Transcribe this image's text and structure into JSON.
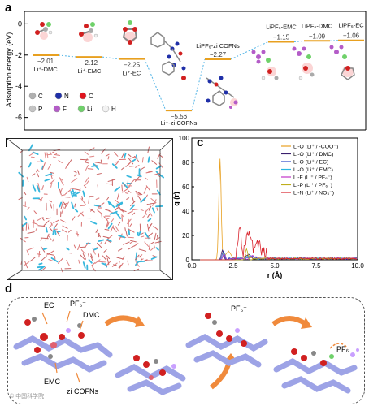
{
  "panel_a": {
    "label": "a",
    "ylabel": "Adsorption energy (eV)",
    "yticks": [
      "0",
      "-2",
      "-4",
      "-6"
    ],
    "legend": [
      {
        "symbol": "C",
        "color": "#b0b0b0"
      },
      {
        "symbol": "N",
        "color": "#1f2fa8"
      },
      {
        "symbol": "O",
        "color": "#e0141e"
      },
      {
        "symbol": "P",
        "color": "#c4c4c4"
      },
      {
        "symbol": "F",
        "color": "#b45cc8"
      },
      {
        "symbol": "Li",
        "color": "#6fd16a"
      },
      {
        "symbol": "H",
        "color": "#f2f2f2"
      }
    ]
  },
  "panel_b": {
    "label": "b"
  },
  "panel_c": {
    "label": "c"
  },
  "panel_d": {
    "label": "d",
    "annotations": {
      "ec": "EC",
      "pf6_1": "PF₆⁻",
      "dmc": "DMC",
      "emc": "EMC",
      "zicofns": "zi COFNs",
      "pf6_2": "PF₆⁻",
      "pf6_3": "PF₆⁻"
    },
    "watermark": "© 中国科学院"
  },
  "chart_data": [
    {
      "type": "line",
      "title": "",
      "xlabel": "",
      "ylabel": "Adsorption energy (eV)",
      "ylim": [
        -6.8,
        0.8
      ],
      "points": [
        {
          "label": "Li⁺-DMC",
          "value": -2.01,
          "color": "#e8a020"
        },
        {
          "label": "Li⁺-EMC",
          "value": -2.12,
          "color": "#e8a020"
        },
        {
          "label": "Li⁺-EC",
          "value": -2.25,
          "color": "#e8a020"
        },
        {
          "label": "Li⁺-zi COFNs",
          "value": -5.56,
          "color": "#e8a020"
        },
        {
          "label": "LiPF₆-zi COFNs",
          "value": -2.27,
          "color": "#e8a020"
        },
        {
          "label": "LiPF₆-EMC",
          "value": -1.15,
          "color": "#e8a020"
        },
        {
          "label": "LiPF₆-DMC",
          "value": -1.09,
          "color": "#e8a020"
        },
        {
          "label": "LiPF₆-EC",
          "value": -1.06,
          "color": "#e8a020"
        }
      ],
      "connector_color": "#4fb3e6",
      "grid": false
    },
    {
      "type": "line",
      "title": "",
      "xlabel": "r (Å)",
      "ylabel": "g (r)",
      "xlim": [
        0,
        10
      ],
      "ylim": [
        0,
        100
      ],
      "xticks": [
        0.0,
        2.5,
        5.0,
        7.5,
        10.0
      ],
      "yticks": [
        0,
        20,
        40,
        60,
        80,
        100
      ],
      "legend_position": "top-right",
      "series": [
        {
          "name": "Li-O (Li⁺ / -COO⁻)",
          "color": "#e8a020",
          "peak_x": 1.7,
          "peak_y": 83,
          "secondary": [
            [
              2.2,
              6
            ],
            [
              3.3,
              3
            ]
          ]
        },
        {
          "name": "Li-O (Li⁺ / DMC)",
          "color": "#3a1f6e",
          "peak_x": 1.85,
          "peak_y": 8,
          "secondary": [
            [
              3.4,
              3
            ]
          ]
        },
        {
          "name": "Li-O (Li⁺ / EC)",
          "color": "#2f48c9",
          "peak_x": 1.9,
          "peak_y": 7,
          "secondary": [
            [
              3.6,
              2
            ]
          ]
        },
        {
          "name": "Li-O (Li⁺ / EMC)",
          "color": "#29b6e0",
          "peak_x": 1.95,
          "peak_y": 6,
          "secondary": [
            [
              3.5,
              2
            ]
          ]
        },
        {
          "name": "Li-F (Li⁺ / PF₆⁻)",
          "color": "#c035c9",
          "peak_x": 1.95,
          "peak_y": 5,
          "secondary": [
            [
              3.7,
              2
            ]
          ]
        },
        {
          "name": "Li-P (Li⁺ / PF₆⁻)",
          "color": "#bfae1c",
          "peak_x": 3.3,
          "peak_y": 9,
          "secondary": []
        },
        {
          "name": "Li-N (Li⁺ / NO₃⁻)",
          "color": "#d8202a",
          "peak_x": 2.9,
          "peak_y": 21,
          "secondary": [
            [
              2.1,
              13
            ],
            [
              3.4,
              16
            ],
            [
              4.0,
              8
            ]
          ]
        }
      ]
    }
  ]
}
